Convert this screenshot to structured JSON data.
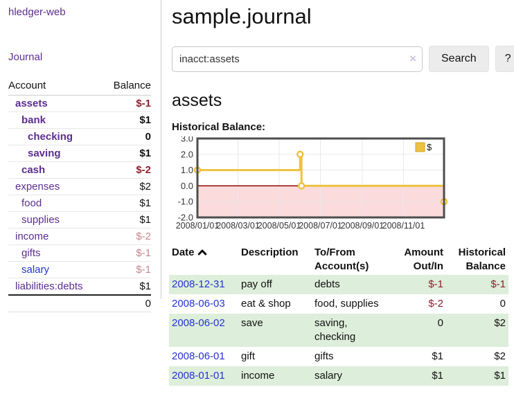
{
  "app": {
    "brand": "hledger-web",
    "nav_journal": "Journal"
  },
  "sidebar": {
    "headers": {
      "account": "Account",
      "balance": "Balance"
    },
    "accounts": [
      {
        "name": "assets",
        "balance": "$-1",
        "depth": 1,
        "bold": true,
        "balance_style": "negstrong",
        "link_style": "purple"
      },
      {
        "name": "bank",
        "balance": "$1",
        "depth": 2,
        "bold": true,
        "balance_style": "normal",
        "link_style": "purple"
      },
      {
        "name": "checking",
        "balance": "0",
        "depth": 3,
        "bold": true,
        "balance_style": "normal",
        "link_style": "purple"
      },
      {
        "name": "saving",
        "balance": "$1",
        "depth": 3,
        "bold": true,
        "balance_style": "normal",
        "link_style": "purple"
      },
      {
        "name": "cash",
        "balance": "$-2",
        "depth": 2,
        "bold": true,
        "balance_style": "negstrong",
        "link_style": "purple"
      },
      {
        "name": "expenses",
        "balance": "$2",
        "depth": 1,
        "bold": false,
        "balance_style": "normal",
        "link_style": "purple"
      },
      {
        "name": "food",
        "balance": "$1",
        "depth": 2,
        "bold": false,
        "balance_style": "normal",
        "link_style": "purple"
      },
      {
        "name": "supplies",
        "balance": "$1",
        "depth": 2,
        "bold": false,
        "balance_style": "normal",
        "link_style": "purple"
      },
      {
        "name": "income",
        "balance": "$-2",
        "depth": 1,
        "bold": false,
        "balance_style": "negmuted",
        "link_style": "purple"
      },
      {
        "name": "gifts",
        "balance": "$-1",
        "depth": 2,
        "bold": false,
        "balance_style": "negmuted",
        "link_style": "purple"
      },
      {
        "name": "salary",
        "balance": "$-1",
        "depth": 2,
        "bold": false,
        "balance_style": "negmuted",
        "link_style": "blue"
      },
      {
        "name": "liabilities:debts",
        "balance": "$1",
        "depth": 1,
        "bold": false,
        "balance_style": "normal",
        "link_style": "purple"
      }
    ],
    "total": "0"
  },
  "main": {
    "title": "sample.journal",
    "search": {
      "value": "inacct:assets",
      "clear_icon": "×",
      "button_label": "Search",
      "help_label": "?"
    },
    "account_heading": "assets",
    "chart_title": "Historical Balance:"
  },
  "chart_data": {
    "type": "line",
    "title": "Historical Balance",
    "step": true,
    "series": [
      {
        "name": "$",
        "color": "#edc240",
        "points": [
          [
            "2008-01-01",
            1
          ],
          [
            "2008-06-01",
            2
          ],
          [
            "2008-06-03",
            0
          ],
          [
            "2008-12-31",
            -1
          ]
        ]
      }
    ],
    "x_ticks": [
      "2008/01/01",
      "2008/03/01",
      "2008/05/01",
      "2008/07/01",
      "2008/09/01",
      "2008/11/01"
    ],
    "x_tick_dates": [
      "2008-01-01",
      "2008-03-01",
      "2008-05-01",
      "2008-07-01",
      "2008-09-01",
      "2008-11-01"
    ],
    "y_ticks": [
      3.0,
      2.0,
      1.0,
      0.0,
      -1.0,
      -2.0
    ],
    "ylim": [
      -2,
      3
    ],
    "xlim": [
      "2008-01-01",
      "2008-12-31"
    ],
    "grid": true,
    "negative_region_fill": "#fbdbdb",
    "zero_line_color": "#8b0000",
    "legend": {
      "label": "$",
      "position": "top-right",
      "swatch_color": "#edc240"
    }
  },
  "register": {
    "headers": {
      "date": "Date",
      "description": "Description",
      "accounts": "To/From Account(s)",
      "amount": "Amount Out/In",
      "balance": "Historical Balance"
    },
    "sort": {
      "column": "date",
      "direction": "asc"
    },
    "rows": [
      {
        "date": "2008-12-31",
        "description": "pay off",
        "accounts": "debts",
        "amount": "$-1",
        "balance": "$-1",
        "amount_neg": true,
        "balance_neg": true,
        "shaded": true
      },
      {
        "date": "2008-06-03",
        "description": "eat & shop",
        "accounts": "food, supplies",
        "amount": "$-2",
        "balance": "0",
        "amount_neg": true,
        "balance_neg": false,
        "shaded": false
      },
      {
        "date": "2008-06-02",
        "description": "save",
        "accounts": "saving, checking",
        "amount": "0",
        "balance": "$2",
        "amount_neg": false,
        "balance_neg": false,
        "shaded": true
      },
      {
        "date": "2008-06-01",
        "description": "gift",
        "accounts": "gifts",
        "amount": "$1",
        "balance": "$2",
        "amount_neg": false,
        "balance_neg": false,
        "shaded": false
      },
      {
        "date": "2008-01-01",
        "description": "income",
        "accounts": "salary",
        "amount": "$1",
        "balance": "$1",
        "amount_neg": false,
        "balance_neg": false,
        "shaded": true
      }
    ]
  }
}
